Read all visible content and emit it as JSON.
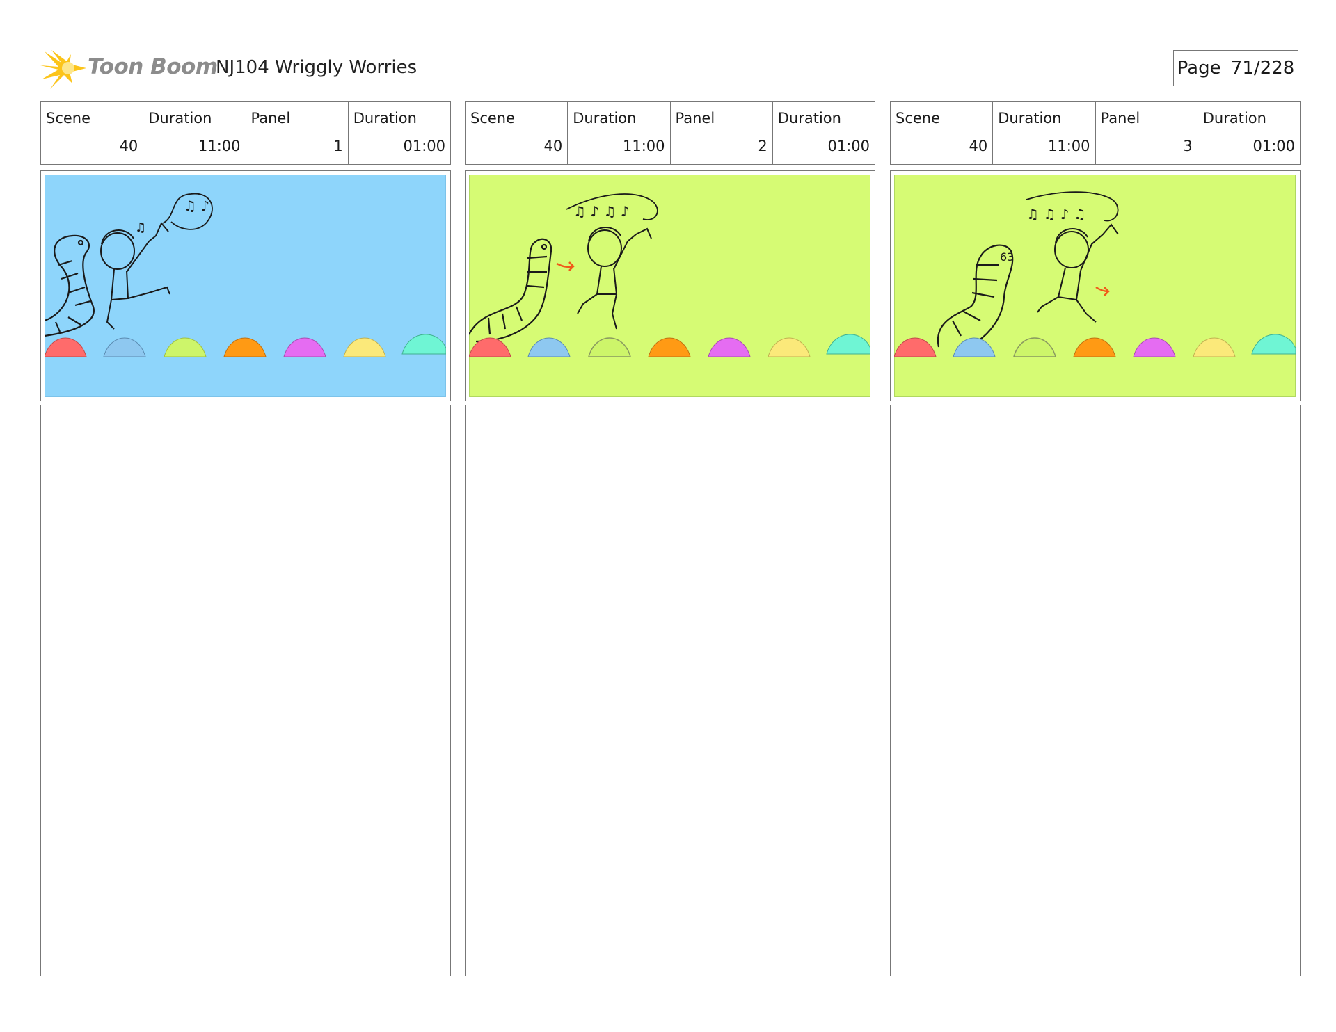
{
  "header": {
    "logo_text": "Toon Boom",
    "project_title": "NJ104 Wriggly Worries",
    "page_label": "Page",
    "page_number": "71/228"
  },
  "labels": {
    "scene": "Scene",
    "duration": "Duration",
    "panel": "Panel"
  },
  "colors": {
    "panel_1_background": "#8ed5fb",
    "panel_2_background": "#d6fb74",
    "panel_3_background": "#d6fb74",
    "stone_red": "#ff6b6b",
    "stone_blue": "#8ec8f0",
    "stone_lime": "#cdf56a",
    "stone_orange": "#ff9a14",
    "stone_magenta": "#e56cf2",
    "stone_yellow": "#fbe97a",
    "stone_teal": "#6ff5d4",
    "arrow": "#f05a1a"
  },
  "panels": [
    {
      "scene": "40",
      "scene_duration": "11:00",
      "panel": "1",
      "panel_duration": "01:00"
    },
    {
      "scene": "40",
      "scene_duration": "11:00",
      "panel": "2",
      "panel_duration": "01:00"
    },
    {
      "scene": "40",
      "scene_duration": "11:00",
      "panel": "3",
      "panel_duration": "01:00"
    }
  ]
}
